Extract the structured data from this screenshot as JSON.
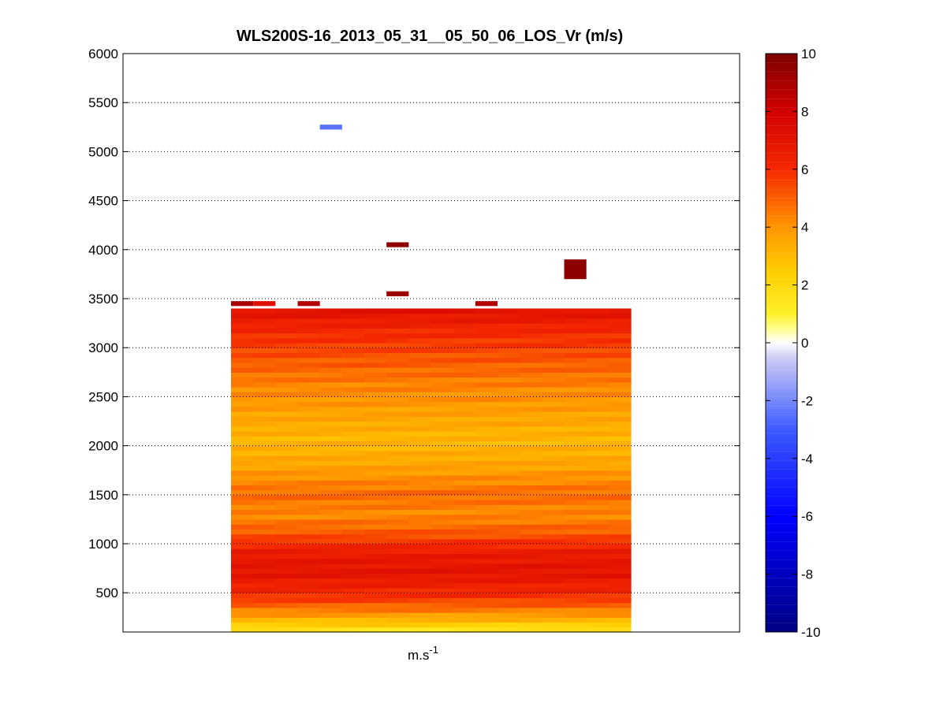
{
  "chart_data": {
    "type": "heatmap",
    "title": "WLS200S-16_2013_05_31__05_50_06_LOS_Vr (m/s)",
    "xlabel_base": "m.s",
    "xlabel_exp": "-1",
    "ylabel": "",
    "ylim": [
      100,
      6000
    ],
    "yticks": [
      500,
      1000,
      1500,
      2000,
      2500,
      3000,
      3500,
      4000,
      4500,
      5000,
      5500,
      6000
    ],
    "grid": "horizontal dotted",
    "colorbar": {
      "colormap": "blue-white-yellow-red",
      "range": [
        -10,
        10
      ],
      "ticks": [
        -10,
        -8,
        -6,
        -4,
        -2,
        0,
        2,
        4,
        6,
        8,
        10
      ]
    },
    "columns": 18,
    "value_profile": [
      {
        "altitude": 100,
        "value": 1.2
      },
      {
        "altitude": 200,
        "value": 2.8
      },
      {
        "altitude": 300,
        "value": 4.2
      },
      {
        "altitude": 450,
        "value": 5.8
      },
      {
        "altitude": 700,
        "value": 7.0
      },
      {
        "altitude": 900,
        "value": 6.7
      },
      {
        "altitude": 1100,
        "value": 5.2
      },
      {
        "altitude": 1300,
        "value": 4.2
      },
      {
        "altitude": 1500,
        "value": 4.8
      },
      {
        "altitude": 1800,
        "value": 3.6
      },
      {
        "altitude": 2050,
        "value": 3.1
      },
      {
        "altitude": 2300,
        "value": 3.6
      },
      {
        "altitude": 2600,
        "value": 4.3
      },
      {
        "altitude": 2900,
        "value": 5.2
      },
      {
        "altitude": 3200,
        "value": 6.2
      },
      {
        "altitude": 3400,
        "value": 7.2
      }
    ],
    "data_top_altitude": 3400,
    "isolated_points": [
      {
        "column": 0,
        "altitude": 3450,
        "value": 9.0
      },
      {
        "column": 1,
        "altitude": 3450,
        "value": 7.2
      },
      {
        "column": 3,
        "altitude": 3450,
        "value": 8.8
      },
      {
        "column": 11,
        "altitude": 3450,
        "value": 8.8
      },
      {
        "column": 7,
        "altitude": 3550,
        "value": 9.3
      },
      {
        "column": 7,
        "altitude": 4050,
        "value": 9.6
      },
      {
        "column": 4,
        "altitude": 5250,
        "value": -2.5
      },
      {
        "column": 15,
        "altitude": 3800,
        "value": 9.6
      }
    ]
  }
}
